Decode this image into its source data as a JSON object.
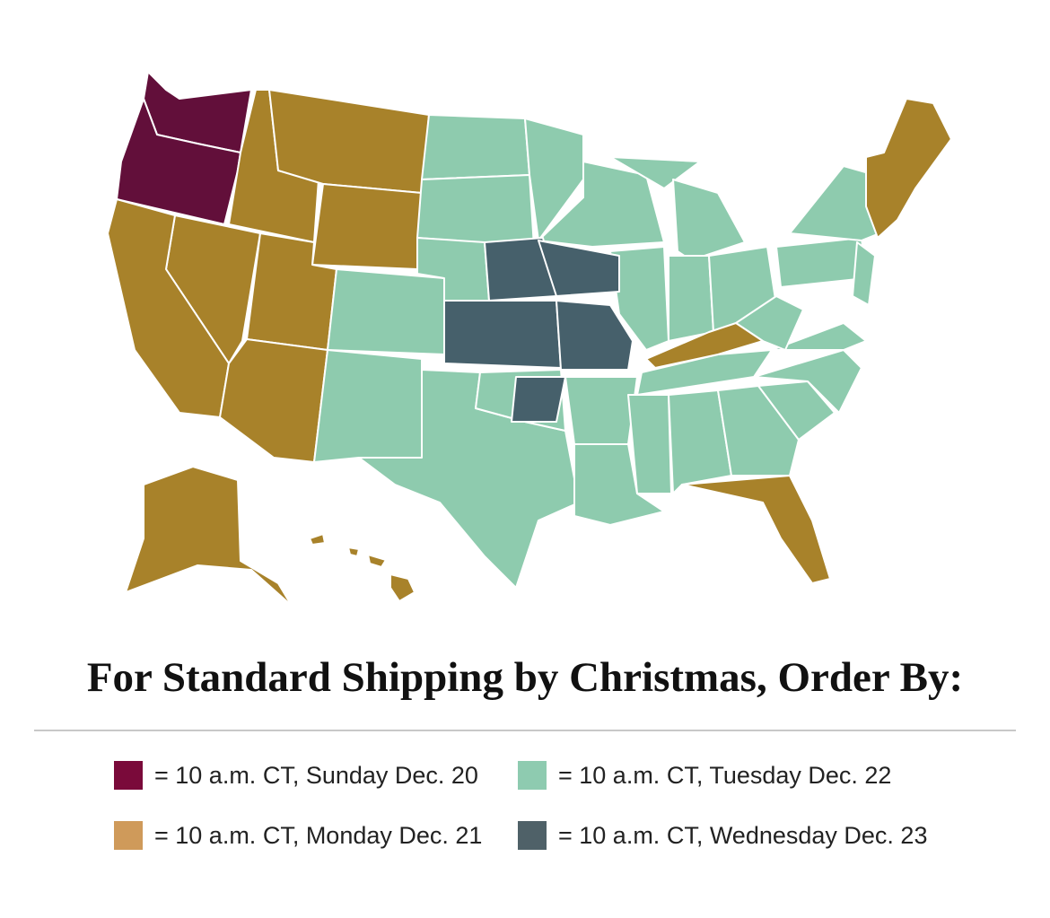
{
  "title": "For Standard Shipping by Christmas, Order By:",
  "legend": [
    {
      "label": "= 10 a.m. CT, Sunday Dec. 20",
      "color": "#7a0a3a"
    },
    {
      "label": "= 10 a.m. CT, Tuesday Dec. 22",
      "color": "#8ecbb0"
    },
    {
      "label": "= 10 a.m. CT, Monday Dec. 21",
      "color": "#cf9a5a"
    },
    {
      "label": "= 10 a.m. CT, Wednesday Dec. 23",
      "color": "#4f6168"
    }
  ]
}
